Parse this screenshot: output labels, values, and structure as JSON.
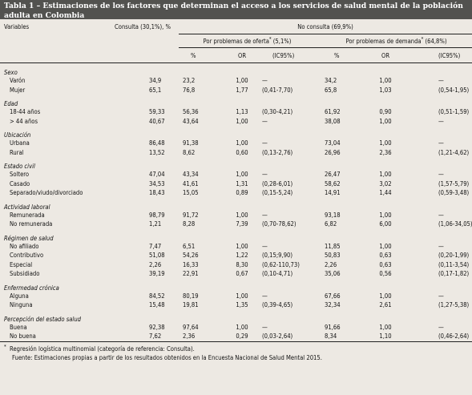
{
  "title": "Tabla 1 – Estimaciones de los factores que determinan el acceso a los servicios de salud mental de la población adulta en Colombia",
  "headers": {
    "variables": "Variables",
    "consulta": "Consulta (30,1%), %",
    "no_consulta": "No consulta (69,9%)",
    "oferta": "Por problemas de oferta",
    "oferta_pct": " (5,1%)",
    "demanda": "Por problemas de demanda",
    "demanda_pct": " (64,8%)",
    "star": "*",
    "pct": "%",
    "or": "OR",
    "ic": "(IC95%)"
  },
  "groups": [
    {
      "label": "Sexo",
      "rows": [
        {
          "name": "Varón",
          "cons": "34,9",
          "p1": "23,2",
          "or1": "1,00",
          "ic1": "—",
          "p2": "34,2",
          "or2": "1,00",
          "ic2": "—"
        },
        {
          "name": "Mujer",
          "cons": "65,1",
          "p1": "76,8",
          "or1": "1,77",
          "ic1": "(0,41-7,70)",
          "p2": "65,8",
          "or2": "1,03",
          "ic2": "(0,54-1,95)"
        }
      ]
    },
    {
      "label": "Edad",
      "rows": [
        {
          "name": "18-44 años",
          "cons": "59,33",
          "p1": "56,36",
          "or1": "1,13",
          "ic1": "(0,30-4,21)",
          "p2": "61,92",
          "or2": "0,90",
          "ic2": "(0,51-1,59)"
        },
        {
          "name": "> 44 años",
          "cons": "40,67",
          "p1": "43,64",
          "or1": "1,00",
          "ic1": "—",
          "p2": "38,08",
          "or2": "1,00",
          "ic2": "—"
        }
      ]
    },
    {
      "label": "Ubicación",
      "rows": [
        {
          "name": "Urbana",
          "cons": "86,48",
          "p1": "91,38",
          "or1": "1,00",
          "ic1": "—",
          "p2": "73,04",
          "or2": "1,00",
          "ic2": "—"
        },
        {
          "name": "Rural",
          "cons": "13,52",
          "p1": "8,62",
          "or1": "0,60",
          "ic1": "(0,13-2,76)",
          "p2": "26,96",
          "or2": "2,36",
          "ic2": "(1,21-4,62)"
        }
      ]
    },
    {
      "label": "Estado civil",
      "rows": [
        {
          "name": "Soltero",
          "cons": "47,04",
          "p1": "43,34",
          "or1": "1,00",
          "ic1": "—",
          "p2": "26,47",
          "or2": "1,00",
          "ic2": "—"
        },
        {
          "name": "Casado",
          "cons": "34,53",
          "p1": "41,61",
          "or1": "1,31",
          "ic1": "(0,28-6,01)",
          "p2": "58,62",
          "or2": "3,02",
          "ic2": "(1,57-5,79)"
        },
        {
          "name": "Separado/viudo/divorciado",
          "cons": "18,43",
          "p1": "15,05",
          "or1": "0,89",
          "ic1": "(0,15-5,24)",
          "p2": "14,91",
          "or2": "1,44",
          "ic2": "(0,59-3,48)"
        }
      ]
    },
    {
      "label": "Actividad laboral",
      "rows": [
        {
          "name": "Remunerada",
          "cons": "98,79",
          "p1": "91,72",
          "or1": "1,00",
          "ic1": "—",
          "p2": "93,18",
          "or2": "1,00",
          "ic2": "—"
        },
        {
          "name": "No remunerada",
          "cons": "1,21",
          "p1": "8,28",
          "or1": "7,39",
          "ic1": "(0,70-78,62)",
          "p2": "6,82",
          "or2": "6,00",
          "ic2": "(1,06-34,05)"
        }
      ]
    },
    {
      "label": "Régimen de salud",
      "rows": [
        {
          "name": "No afiliado",
          "cons": "7,47",
          "p1": "6,51",
          "or1": "1,00",
          "ic1": "—",
          "p2": "11,85",
          "or2": "1,00",
          "ic2": "—"
        },
        {
          "name": "Contributivo",
          "cons": "51,08",
          "p1": "54,26",
          "or1": "1,22",
          "ic1": "(0,15;9,90)",
          "p2": "50,83",
          "or2": "0,63",
          "ic2": "(0,20-1,99)"
        },
        {
          "name": "Especial",
          "cons": "2,26",
          "p1": "16,33",
          "or1": "8,30",
          "ic1": "(0,62-110,73)",
          "p2": "2,26",
          "or2": "0,63",
          "ic2": "(0,11-3,54)"
        },
        {
          "name": "Subsidiado",
          "cons": "39,19",
          "p1": "22,91",
          "or1": "0,67",
          "ic1": "(0,10-4,71)",
          "p2": "35,06",
          "or2": "0,56",
          "ic2": "(0,17-1,82)"
        }
      ]
    },
    {
      "label": "Enfermedad crónica",
      "rows": [
        {
          "name": "Alguna",
          "cons": "84,52",
          "p1": "80,19",
          "or1": "1,00",
          "ic1": "—",
          "p2": "67,66",
          "or2": "1,00",
          "ic2": "—"
        },
        {
          "name": "Ninguna",
          "cons": "15,48",
          "p1": "19,81",
          "or1": "1,35",
          "ic1": "(0,39-4,65)",
          "p2": "32,34",
          "or2": "2,61",
          "ic2": "(1,27-5,38)"
        }
      ]
    },
    {
      "label": "Percepción del estado salud",
      "rows": [
        {
          "name": "Buena",
          "cons": "92,38",
          "p1": "97,64",
          "or1": "1,00",
          "ic1": "—",
          "p2": "91,66",
          "or2": "1,00",
          "ic2": "—"
        },
        {
          "name": "No buena",
          "cons": "7,62",
          "p1": "2,36",
          "or1": "0,29",
          "ic1": "(0,03-2,64)",
          "p2": "8,34",
          "or2": "1,10",
          "ic2": "(0,46-2,64)"
        }
      ]
    }
  ],
  "footnotes": {
    "star": "*",
    "note1": "Regresión logística multinomial (categoría de referencia: Consulta).",
    "note2": "Fuente: Estimaciones propias a partir de los resultados obtenidos en la Encuesta Nacional de Salud Mental 2015."
  }
}
